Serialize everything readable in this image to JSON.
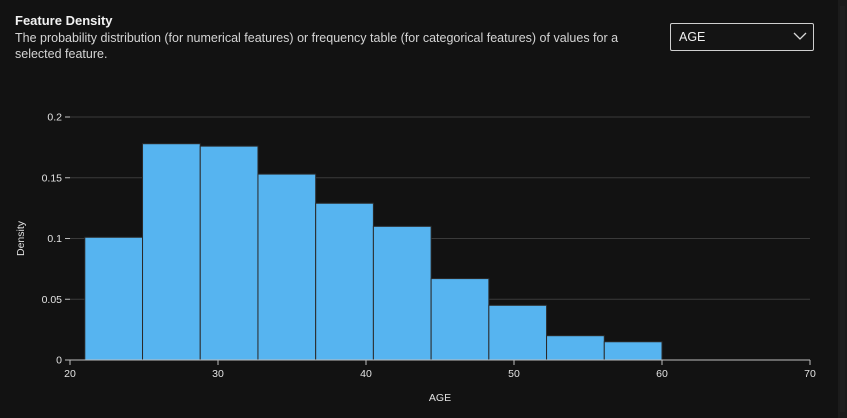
{
  "header": {
    "title": "Feature Density",
    "subtitle": "The probability distribution (for numerical features) or frequency table (for categorical features) of values for a selected feature."
  },
  "feature_select": {
    "value": "AGE"
  },
  "colors": {
    "bar": "#56b4f0",
    "bar_edge": "#2a2a2a",
    "grid": "#3a3a3a",
    "axis": "#bdbdbd",
    "background": "#121212"
  },
  "chart_data": {
    "type": "bar",
    "title": "",
    "xlabel": "AGE",
    "ylabel": "Density",
    "xlim": [
      20,
      70
    ],
    "ylim": [
      0,
      0.2
    ],
    "x_ticks": [
      20,
      30,
      40,
      50,
      60,
      70
    ],
    "y_ticks": [
      0,
      0.05,
      0.1,
      0.15,
      0.2
    ],
    "x_tick_labels": [
      "20",
      "30",
      "40",
      "50",
      "60",
      "70"
    ],
    "y_tick_labels": [
      "0",
      "0.05",
      "0.1",
      "0.15",
      "0.2"
    ],
    "grid": true,
    "bins": [
      {
        "start": 21,
        "end": 24.9,
        "value": 0.101
      },
      {
        "start": 24.9,
        "end": 28.8,
        "value": 0.178
      },
      {
        "start": 28.8,
        "end": 32.7,
        "value": 0.176
      },
      {
        "start": 32.7,
        "end": 36.6,
        "value": 0.153
      },
      {
        "start": 36.6,
        "end": 40.5,
        "value": 0.129
      },
      {
        "start": 40.5,
        "end": 44.4,
        "value": 0.11
      },
      {
        "start": 44.4,
        "end": 48.3,
        "value": 0.067
      },
      {
        "start": 48.3,
        "end": 52.2,
        "value": 0.045
      },
      {
        "start": 52.2,
        "end": 56.1,
        "value": 0.02
      },
      {
        "start": 56.1,
        "end": 60.0,
        "value": 0.015
      }
    ]
  }
}
